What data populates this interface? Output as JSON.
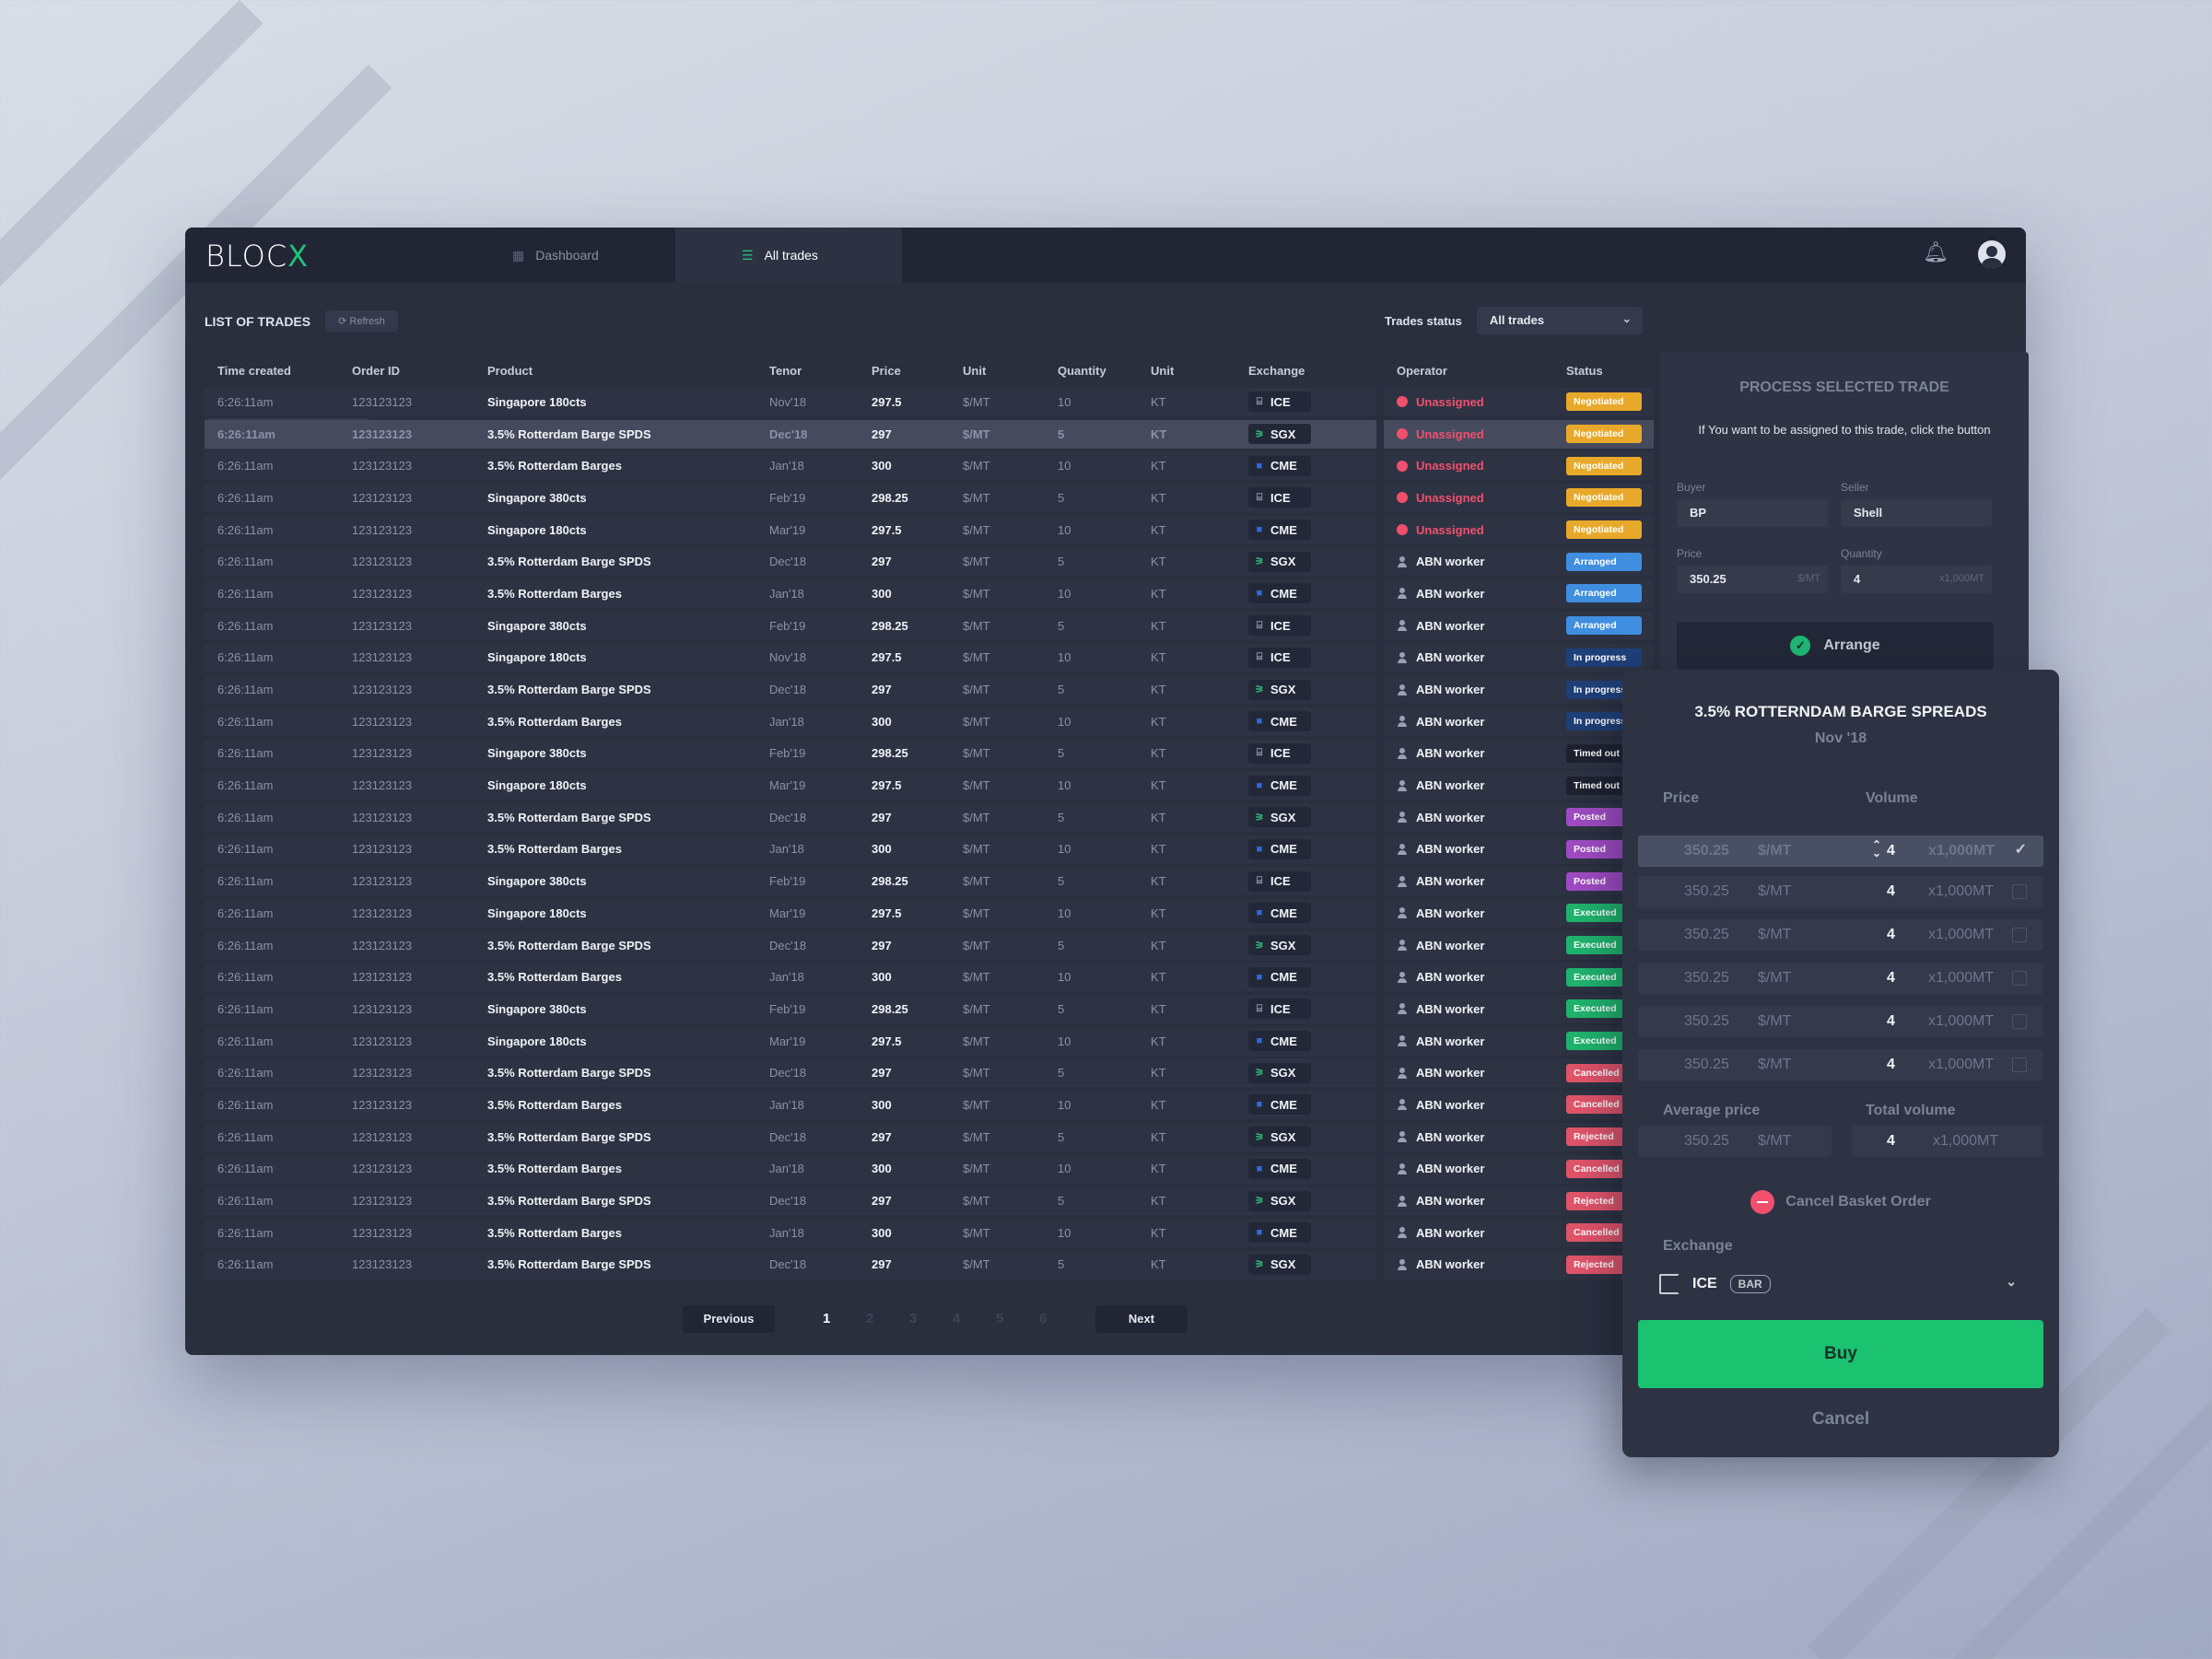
{
  "header": {
    "logo_text": "BLOC",
    "logo_mark": "X",
    "tabs": [
      {
        "label": "Dashboard",
        "icon": "grid-icon"
      },
      {
        "label": "All trades",
        "icon": "list-icon"
      }
    ],
    "bell_icon": "bell-icon",
    "avatar_icon": "user-avatar-icon"
  },
  "list": {
    "title": "LIST OF TRADES",
    "refresh_label": "Refresh",
    "status_label": "Trades status",
    "status_value": "All trades"
  },
  "table": {
    "columns": [
      "Time created",
      "Order ID",
      "Product",
      "Tenor",
      "Price",
      "Unit",
      "Quantity",
      "Unit",
      "Exchange",
      "Operator",
      "Status"
    ],
    "rows": [
      [
        "6:26:11am",
        "123123123",
        "Singapore 180cts",
        "Nov'18",
        "297.5",
        "$/MT",
        "10",
        "KT",
        "ICE",
        "Unassigned",
        "Negotiated"
      ],
      [
        "6:26:11am",
        "123123123",
        "3.5% Rotterdam Barge SPDS",
        "Dec'18",
        "297",
        "$/MT",
        "5",
        "KT",
        "SGX",
        "Unassigned",
        "Negotiated"
      ],
      [
        "6:26:11am",
        "123123123",
        "3.5% Rotterdam Barges",
        "Jan'18",
        "300",
        "$/MT",
        "10",
        "KT",
        "CME",
        "Unassigned",
        "Negotiated"
      ],
      [
        "6:26:11am",
        "123123123",
        "Singapore 380cts",
        "Feb'19",
        "298.25",
        "$/MT",
        "5",
        "KT",
        "ICE",
        "Unassigned",
        "Negotiated"
      ],
      [
        "6:26:11am",
        "123123123",
        "Singapore 180cts",
        "Mar'19",
        "297.5",
        "$/MT",
        "10",
        "KT",
        "CME",
        "Unassigned",
        "Negotiated"
      ],
      [
        "6:26:11am",
        "123123123",
        "3.5% Rotterdam Barge SPDS",
        "Dec'18",
        "297",
        "$/MT",
        "5",
        "KT",
        "SGX",
        "ABN worker",
        "Arranged"
      ],
      [
        "6:26:11am",
        "123123123",
        "3.5% Rotterdam Barges",
        "Jan'18",
        "300",
        "$/MT",
        "10",
        "KT",
        "CME",
        "ABN worker",
        "Arranged"
      ],
      [
        "6:26:11am",
        "123123123",
        "Singapore 380cts",
        "Feb'19",
        "298.25",
        "$/MT",
        "5",
        "KT",
        "ICE",
        "ABN worker",
        "Arranged"
      ],
      [
        "6:26:11am",
        "123123123",
        "Singapore 180cts",
        "Nov'18",
        "297.5",
        "$/MT",
        "10",
        "KT",
        "ICE",
        "ABN worker",
        "In progress"
      ],
      [
        "6:26:11am",
        "123123123",
        "3.5% Rotterdam Barge SPDS",
        "Dec'18",
        "297",
        "$/MT",
        "5",
        "KT",
        "SGX",
        "ABN worker",
        "In progress"
      ],
      [
        "6:26:11am",
        "123123123",
        "3.5% Rotterdam Barges",
        "Jan'18",
        "300",
        "$/MT",
        "10",
        "KT",
        "CME",
        "ABN worker",
        "In progress"
      ],
      [
        "6:26:11am",
        "123123123",
        "Singapore 380cts",
        "Feb'19",
        "298.25",
        "$/MT",
        "5",
        "KT",
        "ICE",
        "ABN worker",
        "Timed out"
      ],
      [
        "6:26:11am",
        "123123123",
        "Singapore 180cts",
        "Mar'19",
        "297.5",
        "$/MT",
        "10",
        "KT",
        "CME",
        "ABN worker",
        "Timed out"
      ],
      [
        "6:26:11am",
        "123123123",
        "3.5% Rotterdam Barge SPDS",
        "Dec'18",
        "297",
        "$/MT",
        "5",
        "KT",
        "SGX",
        "ABN worker",
        "Posted"
      ],
      [
        "6:26:11am",
        "123123123",
        "3.5% Rotterdam Barges",
        "Jan'18",
        "300",
        "$/MT",
        "10",
        "KT",
        "CME",
        "ABN worker",
        "Posted"
      ],
      [
        "6:26:11am",
        "123123123",
        "Singapore 380cts",
        "Feb'19",
        "298.25",
        "$/MT",
        "5",
        "KT",
        "ICE",
        "ABN worker",
        "Posted"
      ],
      [
        "6:26:11am",
        "123123123",
        "Singapore 180cts",
        "Mar'19",
        "297.5",
        "$/MT",
        "10",
        "KT",
        "CME",
        "ABN worker",
        "Executed"
      ],
      [
        "6:26:11am",
        "123123123",
        "3.5% Rotterdam Barge SPDS",
        "Dec'18",
        "297",
        "$/MT",
        "5",
        "KT",
        "SGX",
        "ABN worker",
        "Executed"
      ],
      [
        "6:26:11am",
        "123123123",
        "3.5% Rotterdam Barges",
        "Jan'18",
        "300",
        "$/MT",
        "10",
        "KT",
        "CME",
        "ABN worker",
        "Executed"
      ],
      [
        "6:26:11am",
        "123123123",
        "Singapore 380cts",
        "Feb'19",
        "298.25",
        "$/MT",
        "5",
        "KT",
        "ICE",
        "ABN worker",
        "Executed"
      ],
      [
        "6:26:11am",
        "123123123",
        "Singapore 180cts",
        "Mar'19",
        "297.5",
        "$/MT",
        "10",
        "KT",
        "CME",
        "ABN worker",
        "Executed"
      ],
      [
        "6:26:11am",
        "123123123",
        "3.5% Rotterdam Barge SPDS",
        "Dec'18",
        "297",
        "$/MT",
        "5",
        "KT",
        "SGX",
        "ABN worker",
        "Cancelled"
      ],
      [
        "6:26:11am",
        "123123123",
        "3.5% Rotterdam Barges",
        "Jan'18",
        "300",
        "$/MT",
        "10",
        "KT",
        "CME",
        "ABN worker",
        "Cancelled"
      ],
      [
        "6:26:11am",
        "123123123",
        "3.5% Rotterdam Barge SPDS",
        "Dec'18",
        "297",
        "$/MT",
        "5",
        "KT",
        "SGX",
        "ABN worker",
        "Rejected"
      ],
      [
        "6:26:11am",
        "123123123",
        "3.5% Rotterdam Barges",
        "Jan'18",
        "300",
        "$/MT",
        "10",
        "KT",
        "CME",
        "ABN worker",
        "Cancelled"
      ],
      [
        "6:26:11am",
        "123123123",
        "3.5% Rotterdam Barge SPDS",
        "Dec'18",
        "297",
        "$/MT",
        "5",
        "KT",
        "SGX",
        "ABN worker",
        "Rejected"
      ],
      [
        "6:26:11am",
        "123123123",
        "3.5% Rotterdam Barges",
        "Jan'18",
        "300",
        "$/MT",
        "10",
        "KT",
        "CME",
        "ABN worker",
        "Cancelled"
      ],
      [
        "6:26:11am",
        "123123123",
        "3.5% Rotterdam Barge SPDS",
        "Dec'18",
        "297",
        "$/MT",
        "5",
        "KT",
        "SGX",
        "ABN worker",
        "Rejected"
      ]
    ],
    "selected_row": 1
  },
  "status_colors": {
    "Negotiated": "#e8a92a",
    "Arranged": "#3f8ee0",
    "In progress": "#1f3f78",
    "Timed out": "#1e2230",
    "Posted": "#a04bc4",
    "Executed": "#1fb56e",
    "Cancelled": "#e2546a",
    "Rejected": "#e2546a"
  },
  "pager": {
    "prev": "Previous",
    "next": "Next",
    "pages": [
      "1",
      "2",
      "3",
      "4",
      "5",
      "6"
    ],
    "current": "1"
  },
  "process": {
    "title": "PROCESS SELECTED TRADE",
    "desc": "If You want to be assigned to this trade, click the button",
    "buyer_label": "Buyer",
    "buyer": "BP",
    "seller_label": "Seller",
    "seller": "Shell",
    "price_label": "Price",
    "price": "350.25",
    "price_unit": "$/MT",
    "qty_label": "Quantity",
    "qty": "4",
    "qty_unit": "x1,000MT",
    "arrange_label": "Arrange"
  },
  "basket": {
    "title": "3.5% ROTTERNDAM BARGE SPREADS",
    "subtitle": "Nov '18",
    "price_header": "Price",
    "volume_header": "Volume",
    "rows": [
      {
        "price": "350.25",
        "unit": "$/MT",
        "volume": "4",
        "vunit": "x1,000MT",
        "checked": true
      },
      {
        "price": "350.25",
        "unit": "$/MT",
        "volume": "4",
        "vunit": "x1,000MT",
        "checked": false
      },
      {
        "price": "350.25",
        "unit": "$/MT",
        "volume": "4",
        "vunit": "x1,000MT",
        "checked": false
      },
      {
        "price": "350.25",
        "unit": "$/MT",
        "volume": "4",
        "vunit": "x1,000MT",
        "checked": false
      },
      {
        "price": "350.25",
        "unit": "$/MT",
        "volume": "4",
        "vunit": "x1,000MT",
        "checked": false
      },
      {
        "price": "350.25",
        "unit": "$/MT",
        "volume": "4",
        "vunit": "x1,000MT",
        "checked": false
      }
    ],
    "avg_label": "Average price",
    "avg_price": "350.25",
    "avg_unit": "$/MT",
    "total_label": "Total volume",
    "total_volume": "4",
    "total_unit": "x1,000MT",
    "cancel_basket": "Cancel Basket Order",
    "exchange_label": "Exchange",
    "exchange_value": "ICE",
    "exchange_tag": "BAR",
    "buy_label": "Buy",
    "cancel_label": "Cancel"
  }
}
